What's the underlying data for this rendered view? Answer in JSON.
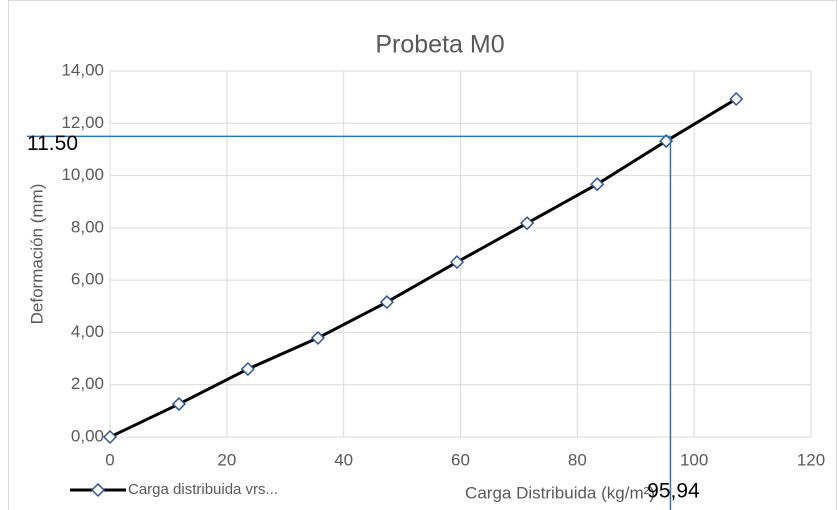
{
  "chart_data": {
    "type": "line",
    "title": "Probeta M0",
    "x_label": "Carga Distribuida (kg/m²)",
    "y_label": "Deformación (mm)",
    "x": [
      0,
      11.8,
      23.6,
      35.6,
      47.4,
      59.4,
      71.4,
      83.4,
      95.2,
      107.2
    ],
    "series": [
      {
        "name": "Carga distribuida vrs...",
        "color": "#000000",
        "marker_color": "#2f5597",
        "values": [
          0,
          1.26,
          2.6,
          3.79,
          5.16,
          6.69,
          8.18,
          9.67,
          11.32,
          12.93
        ]
      }
    ],
    "xlim": [
      0,
      120
    ],
    "xticks": [
      0,
      20,
      40,
      60,
      80,
      100,
      120
    ],
    "ylim": [
      0,
      14
    ],
    "yticks": [
      {
        "value": 0,
        "label": "0,00"
      },
      {
        "value": 2,
        "label": "2,00"
      },
      {
        "value": 4,
        "label": "4,00"
      },
      {
        "value": 6,
        "label": "6,00"
      },
      {
        "value": 8,
        "label": "8,00"
      },
      {
        "value": 10,
        "label": "10,00"
      },
      {
        "value": 12,
        "label": "12,00"
      },
      {
        "value": 14,
        "label": "14,00"
      }
    ],
    "grid": true,
    "legend": "bottom-left",
    "annotations": [
      {
        "axis": "y",
        "value": 11.5,
        "label": "11.50"
      },
      {
        "axis": "x",
        "value": 95.94,
        "label": "95,94"
      }
    ],
    "annotation_color": "#2e75b6"
  }
}
